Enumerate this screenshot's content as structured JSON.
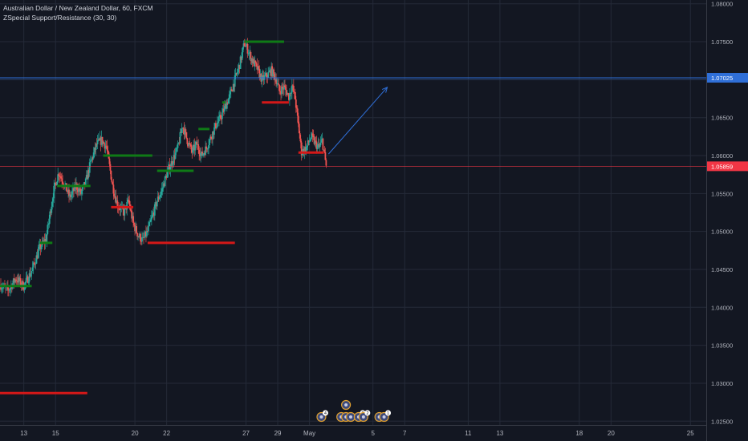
{
  "header": {
    "symbol_line": "Australian Dollar / New Zealand Dollar, 60, FXCM",
    "indicator_line": "ZSpecial Support/Resistance (30, 30)"
  },
  "colors": {
    "background": "#131722",
    "grid": "#242a38",
    "axis_text": "#b2b5be",
    "candle_up": "#26a69a",
    "candle_down": "#ef5350",
    "support": "#0f7a16",
    "resistance": "#d41818",
    "hline": "#2f6fd8",
    "current_price": "#f23645"
  },
  "chart_data": {
    "type": "candlestick",
    "instrument": "Australian Dollar / New Zealand Dollar",
    "ylim": [
      1.0245,
      1.0805
    ],
    "y_ticks": [
      1.025,
      1.03,
      1.035,
      1.04,
      1.045,
      1.05,
      1.055,
      1.06,
      1.065,
      1.07,
      1.075,
      1.08
    ],
    "y_tick_labels": [
      "1.02500",
      "1.03000",
      "1.03500",
      "1.04000",
      "1.04500",
      "1.05000",
      "1.05500",
      "1.06000",
      "1.06500",
      "1.07000",
      "1.07500",
      "1.08000"
    ],
    "x_day_range": [
      11.5,
      56
    ],
    "x_ticks": [
      {
        "day": 13,
        "label": "13"
      },
      {
        "day": 15,
        "label": "15"
      },
      {
        "day": 20,
        "label": "20"
      },
      {
        "day": 22,
        "label": "22"
      },
      {
        "day": 27,
        "label": "27"
      },
      {
        "day": 29,
        "label": "29"
      },
      {
        "day": 31,
        "label": "May"
      },
      {
        "day": 35,
        "label": "5"
      },
      {
        "day": 37,
        "label": "7"
      },
      {
        "day": 41,
        "label": "11"
      },
      {
        "day": 43,
        "label": "13"
      },
      {
        "day": 48,
        "label": "18"
      },
      {
        "day": 50,
        "label": "20"
      },
      {
        "day": 55,
        "label": "25"
      }
    ],
    "price_path": [
      [
        11.5,
        1.043
      ],
      [
        12.0,
        1.0422
      ],
      [
        12.5,
        1.0438
      ],
      [
        13.0,
        1.0428
      ],
      [
        13.5,
        1.0448
      ],
      [
        14.0,
        1.0478
      ],
      [
        14.4,
        1.049
      ],
      [
        14.7,
        1.053
      ],
      [
        14.9,
        1.0555
      ],
      [
        15.2,
        1.0578
      ],
      [
        15.6,
        1.056
      ],
      [
        15.9,
        1.0545
      ],
      [
        16.3,
        1.056
      ],
      [
        16.6,
        1.055
      ],
      [
        16.9,
        1.0565
      ],
      [
        17.2,
        1.059
      ],
      [
        17.6,
        1.0615
      ],
      [
        17.9,
        1.062
      ],
      [
        18.2,
        1.0612
      ],
      [
        18.6,
        1.056
      ],
      [
        18.9,
        1.0535
      ],
      [
        19.3,
        1.0525
      ],
      [
        19.6,
        1.054
      ],
      [
        19.9,
        1.051
      ],
      [
        20.2,
        1.0495
      ],
      [
        20.5,
        1.0488
      ],
      [
        20.8,
        1.05
      ],
      [
        21.1,
        1.052
      ],
      [
        21.4,
        1.054
      ],
      [
        21.7,
        1.0555
      ],
      [
        22.0,
        1.0575
      ],
      [
        22.3,
        1.059
      ],
      [
        22.7,
        1.061
      ],
      [
        23.0,
        1.064
      ],
      [
        23.3,
        1.062
      ],
      [
        23.6,
        1.0605
      ],
      [
        23.9,
        1.0615
      ],
      [
        24.2,
        1.06
      ],
      [
        24.5,
        1.061
      ],
      [
        24.8,
        1.0625
      ],
      [
        25.1,
        1.064
      ],
      [
        25.4,
        1.065
      ],
      [
        25.7,
        1.0665
      ],
      [
        26.0,
        1.068
      ],
      [
        26.3,
        1.07
      ],
      [
        26.6,
        1.072
      ],
      [
        26.9,
        1.0748
      ],
      [
        27.1,
        1.074
      ],
      [
        27.4,
        1.0725
      ],
      [
        27.7,
        1.0715
      ],
      [
        28.0,
        1.07
      ],
      [
        28.3,
        1.0705
      ],
      [
        28.6,
        1.0712
      ],
      [
        28.9,
        1.07
      ],
      [
        29.1,
        1.0685
      ],
      [
        29.4,
        1.069
      ],
      [
        29.7,
        1.0678
      ],
      [
        29.9,
        1.0692
      ],
      [
        30.1,
        1.0675
      ],
      [
        30.3,
        1.064
      ],
      [
        30.5,
        1.0605
      ],
      [
        30.8,
        1.061
      ],
      [
        31.1,
        1.0625
      ],
      [
        31.4,
        1.0615
      ],
      [
        31.6,
        1.061
      ],
      [
        31.8,
        1.062
      ],
      [
        31.95,
        1.06
      ],
      [
        32.05,
        1.0586
      ]
    ],
    "series": [
      {
        "name": "",
        "type": "support",
        "price": 1.0428,
        "x_start": 11.5,
        "x_end": 13.5
      },
      {
        "name": "",
        "type": "support",
        "price": 1.0485,
        "x_start": 14.0,
        "x_end": 14.8
      },
      {
        "name": "",
        "type": "support",
        "price": 1.056,
        "x_start": 15.1,
        "x_end": 17.2
      },
      {
        "name": "",
        "type": "support",
        "price": 1.06,
        "x_start": 18.0,
        "x_end": 21.1
      },
      {
        "name": "",
        "type": "support",
        "price": 1.058,
        "x_start": 21.4,
        "x_end": 23.7
      },
      {
        "name": "",
        "type": "support",
        "price": 1.0635,
        "x_start": 24.0,
        "x_end": 24.7
      },
      {
        "name": "",
        "type": "support",
        "price": 1.067,
        "x_start": 25.5,
        "x_end": 25.7
      },
      {
        "name": "",
        "type": "support",
        "price": 1.075,
        "x_start": 26.9,
        "x_end": 29.4
      },
      {
        "name": "",
        "type": "resistance",
        "price": 1.0532,
        "x_start": 18.5,
        "x_end": 19.9
      },
      {
        "name": "",
        "type": "resistance",
        "price": 1.0485,
        "x_start": 20.8,
        "x_end": 26.3
      },
      {
        "name": "",
        "type": "resistance",
        "price": 1.067,
        "x_start": 28.0,
        "x_end": 29.7
      },
      {
        "name": "",
        "type": "resistance",
        "price": 1.0604,
        "x_start": 30.3,
        "x_end": 31.9
      },
      {
        "name": "",
        "type": "resistance",
        "price": 1.0287,
        "x_start": 11.5,
        "x_end": 17.0
      }
    ],
    "horizontal_line": {
      "price": 1.07025,
      "label": "1.07025"
    },
    "current_price": {
      "price": 1.05859,
      "label": "1.05859"
    },
    "projection_arrow": {
      "from": [
        32.2,
        1.0602
      ],
      "to": [
        35.9,
        1.069
      ]
    },
    "event_markers": [
      {
        "day": 31.75,
        "label": "4"
      },
      {
        "day": 33.0,
        "label": ""
      },
      {
        "day": 33.3,
        "label": ""
      },
      {
        "day": 33.6,
        "label": ""
      },
      {
        "day": 34.1,
        "label": "2"
      },
      {
        "day": 34.4,
        "label": "2"
      },
      {
        "day": 35.4,
        "label": ""
      },
      {
        "day": 35.7,
        "label": "1"
      }
    ],
    "event_marker_top": {
      "day": 33.3
    }
  }
}
